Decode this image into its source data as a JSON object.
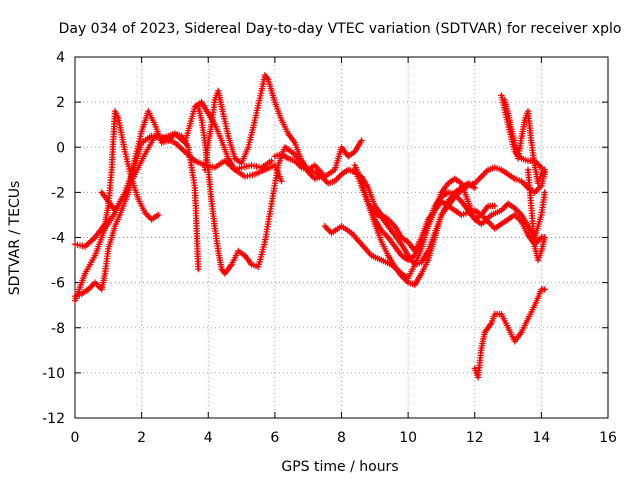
{
  "chart_data": {
    "type": "scatter",
    "title": "Day 034 of 2023, Sidereal Day-to-day VTEC variation (SDTVAR) for receiver xplo",
    "xlabel": "GPS time / hours",
    "ylabel": "SDTVAR / TECUs",
    "xlim": [
      0,
      16
    ],
    "ylim": [
      -12,
      4
    ],
    "xticks": [
      0,
      2,
      4,
      6,
      8,
      10,
      12,
      14,
      16
    ],
    "yticks": [
      -12,
      -10,
      -8,
      -6,
      -4,
      -2,
      0,
      2,
      4
    ],
    "grid": true,
    "marker": "plus",
    "color": "#ff0000",
    "series": [
      {
        "name": "s1",
        "x": [
          0.0,
          0.3,
          0.6,
          0.9,
          1.2,
          1.5,
          1.8,
          2.1,
          2.4,
          2.7,
          3.0,
          3.3,
          3.6,
          3.9,
          4.2,
          4.5,
          4.8,
          5.1,
          5.4,
          5.7,
          6.0,
          6.2
        ],
        "y": [
          -6.8,
          -5.6,
          -4.8,
          -3.6,
          -2.9,
          -2.1,
          -1.2,
          -0.3,
          0.5,
          0.4,
          0.2,
          -0.2,
          -0.6,
          -0.8,
          -0.9,
          -0.6,
          -1.0,
          -1.3,
          -1.2,
          -1.0,
          -0.8,
          -1.5
        ]
      },
      {
        "name": "s2",
        "x": [
          0.0,
          0.3,
          0.6,
          0.9,
          1.0,
          1.1,
          1.2,
          1.3,
          1.5,
          1.7,
          1.9,
          2.1,
          2.3,
          2.5
        ],
        "y": [
          -4.3,
          -4.4,
          -4.0,
          -3.4,
          -2.6,
          -1.0,
          1.6,
          1.3,
          -0.2,
          -1.4,
          -2.3,
          -2.9,
          -3.2,
          -3.0
        ]
      },
      {
        "name": "s3",
        "x": [
          0.0,
          0.2,
          0.4,
          0.6,
          0.8,
          0.9,
          1.0,
          1.2,
          1.4,
          1.6,
          1.8,
          2.0,
          2.2,
          2.4,
          2.6,
          2.8,
          3.0,
          3.2,
          3.4,
          3.6,
          3.7
        ],
        "y": [
          -6.6,
          -6.5,
          -6.3,
          -6.0,
          -6.3,
          -5.6,
          -4.5,
          -3.5,
          -2.8,
          -2.0,
          -0.5,
          0.7,
          1.6,
          1.0,
          0.2,
          0.3,
          0.6,
          0.5,
          0.0,
          -1.8,
          -5.4
        ]
      },
      {
        "name": "s4",
        "x": [
          0.8,
          1.0,
          1.2,
          1.5,
          1.8,
          2.0,
          2.3,
          2.6,
          3.0,
          3.3,
          3.6,
          3.8,
          4.0,
          4.2,
          4.4,
          4.6,
          4.8,
          5.0,
          5.3,
          5.6,
          5.9
        ],
        "y": [
          -2.0,
          -2.4,
          -2.8,
          -2.0,
          -0.8,
          0.2,
          0.5,
          0.4,
          0.6,
          0.2,
          1.8,
          2.0,
          1.5,
          1.0,
          0.3,
          -0.5,
          -1.0,
          -0.9,
          -0.8,
          -0.9,
          -0.6
        ]
      },
      {
        "name": "s5",
        "x": [
          3.7,
          3.8,
          3.9,
          4.0,
          4.1,
          4.2,
          4.3,
          4.4,
          4.5,
          4.7,
          4.9,
          5.1,
          5.3,
          5.5,
          5.7,
          5.9,
          6.1,
          6.3,
          6.5,
          6.8,
          7.0,
          7.2,
          7.4
        ],
        "y": [
          1.8,
          1.2,
          0.2,
          -1.0,
          -2.4,
          -3.6,
          -4.6,
          -5.4,
          -5.6,
          -5.2,
          -4.6,
          -4.8,
          -5.2,
          -5.3,
          -4.2,
          -2.5,
          -0.8,
          0.0,
          -0.2,
          -0.6,
          -1.1,
          -1.4,
          -1.3
        ]
      },
      {
        "name": "s6",
        "x": [
          3.9,
          4.0,
          4.1,
          4.2,
          4.3,
          4.4,
          4.6,
          4.8,
          5.0,
          5.2,
          5.4,
          5.6,
          5.7,
          5.8,
          6.0,
          6.2,
          6.4,
          6.6,
          6.8,
          7.0,
          7.2,
          7.5,
          7.8,
          8.0,
          8.2,
          8.4,
          8.6
        ],
        "y": [
          -1.0,
          0.2,
          1.0,
          2.1,
          2.5,
          1.8,
          0.5,
          -0.5,
          -0.7,
          0.0,
          1.2,
          2.5,
          3.2,
          3.0,
          2.0,
          1.2,
          0.6,
          0.2,
          -0.6,
          -1.0,
          -0.8,
          -1.3,
          -1.0,
          0.0,
          -0.4,
          -0.2,
          0.3
        ]
      },
      {
        "name": "s7",
        "x": [
          6.0,
          6.2,
          6.4,
          6.6,
          6.8,
          7.0,
          7.2,
          7.4,
          7.6,
          7.8,
          8.0,
          8.2,
          8.4,
          8.6,
          8.8,
          9.0,
          9.2,
          9.4,
          9.6,
          9.8,
          10.0,
          10.2,
          10.4,
          10.6,
          10.8,
          11.0,
          11.2,
          11.4,
          11.6,
          11.8,
          12.0,
          12.2,
          12.4,
          12.6,
          12.8,
          13.0,
          13.2,
          13.4,
          13.6,
          13.8,
          14.0,
          14.1
        ],
        "y": [
          -0.4,
          -0.3,
          -0.5,
          -0.6,
          -0.9,
          -1.0,
          -1.1,
          -1.3,
          -1.6,
          -1.5,
          -1.2,
          -1.0,
          -1.1,
          -1.3,
          -1.8,
          -2.6,
          -3.0,
          -3.2,
          -3.5,
          -4.0,
          -4.2,
          -4.6,
          -4.0,
          -3.2,
          -2.8,
          -2.4,
          -2.6,
          -2.2,
          -1.9,
          -1.7,
          -1.6,
          -1.3,
          -1.0,
          -0.9,
          -1.0,
          -1.2,
          -1.4,
          -1.5,
          -1.8,
          -2.0,
          -1.7,
          -1.1
        ]
      },
      {
        "name": "s8",
        "x": [
          7.5,
          7.7,
          8.0,
          8.3,
          8.6,
          8.9,
          9.2,
          9.5,
          9.8,
          10.0,
          10.2,
          10.4,
          10.6,
          10.8,
          11.0,
          11.2,
          11.4,
          11.6,
          11.8,
          12.0,
          12.2,
          12.5,
          12.8,
          13.0,
          13.2,
          13.4,
          13.6,
          13.8,
          14.0,
          14.1
        ],
        "y": [
          -3.5,
          -3.8,
          -3.5,
          -3.8,
          -4.3,
          -4.8,
          -5.0,
          -5.2,
          -5.6,
          -5.8,
          -5.2,
          -4.5,
          -3.5,
          -2.6,
          -2.2,
          -2.0,
          -2.1,
          -2.4,
          -2.8,
          -3.2,
          -3.4,
          -3.0,
          -2.8,
          -2.5,
          -2.7,
          -3.0,
          -3.5,
          -4.0,
          -3.0,
          -2.0
        ]
      },
      {
        "name": "s9",
        "x": [
          8.4,
          8.6,
          8.8,
          9.0,
          9.2,
          9.4,
          9.6,
          9.8,
          10.0,
          10.2,
          10.4,
          10.6,
          10.8,
          11.0,
          11.2,
          11.4,
          11.6,
          11.8,
          12.0,
          12.2,
          12.4,
          12.6,
          12.8,
          13.0,
          13.2,
          13.4,
          13.6,
          13.8,
          14.0,
          14.1
        ],
        "y": [
          -1.0,
          -1.7,
          -2.5,
          -3.4,
          -4.2,
          -4.8,
          -5.3,
          -5.7,
          -6.0,
          -6.1,
          -5.6,
          -5.0,
          -4.0,
          -3.0,
          -2.6,
          -2.8,
          -3.0,
          -2.9,
          -2.8,
          -3.0,
          -3.3,
          -3.6,
          -3.4,
          -3.2,
          -3.0,
          -3.3,
          -3.9,
          -4.3,
          -4.0,
          -4.0
        ]
      },
      {
        "name": "s10",
        "x": [
          8.4,
          8.6,
          8.8,
          9.0,
          9.2,
          9.4,
          9.6,
          9.8,
          10.0,
          10.2,
          10.4,
          10.6,
          10.8,
          11.0,
          11.2,
          11.4,
          11.6,
          11.8,
          12.0,
          12.2,
          12.4,
          12.6
        ],
        "y": [
          -0.8,
          -1.5,
          -2.4,
          -3.2,
          -3.7,
          -4.0,
          -4.4,
          -4.8,
          -5.0,
          -4.8,
          -4.2,
          -3.5,
          -2.8,
          -2.0,
          -1.6,
          -1.4,
          -1.6,
          -2.4,
          -3.2,
          -3.0,
          -2.6,
          -2.6
        ]
      },
      {
        "name": "s11",
        "x": [
          8.6,
          8.8,
          9.0,
          9.2,
          9.4,
          9.6,
          9.8,
          10.0,
          10.2,
          10.4,
          10.6,
          10.8,
          11.0,
          11.2,
          11.4,
          11.6,
          11.8,
          12.0
        ],
        "y": [
          -1.7,
          -2.5,
          -2.9,
          -3.1,
          -3.5,
          -3.9,
          -4.3,
          -4.8,
          -5.2,
          -5.1,
          -4.6,
          -3.8,
          -3.0,
          -2.4,
          -2.0,
          -1.8,
          -1.6,
          -1.8
        ]
      },
      {
        "name": "s12",
        "x": [
          12.9,
          13.0,
          13.1,
          13.2,
          13.3,
          13.4,
          13.5,
          13.6,
          13.7,
          13.8,
          13.9,
          14.0,
          14.1
        ],
        "y": [
          2.1,
          1.5,
          0.8,
          0.2,
          -0.5,
          0.4,
          1.2,
          1.6,
          0.2,
          -0.8,
          -1.6,
          -1.2,
          -1.0
        ]
      },
      {
        "name": "s13",
        "x": [
          12.8,
          13.0,
          13.2,
          13.4,
          13.6,
          13.8,
          14.0,
          14.1
        ],
        "y": [
          2.3,
          1.0,
          -0.2,
          -0.5,
          -0.6,
          -0.6,
          -0.9,
          -1.2
        ]
      },
      {
        "name": "s14",
        "x": [
          13.6,
          13.8,
          13.9,
          14.0,
          14.1
        ],
        "y": [
          -1.0,
          -4.4,
          -5.0,
          -4.6,
          -4.0
        ]
      },
      {
        "name": "s15",
        "x": [
          12.0,
          12.1,
          12.2,
          12.3,
          12.4,
          12.5,
          12.6,
          12.8,
          13.0,
          13.2,
          13.4,
          13.6,
          13.8,
          14.0,
          14.1
        ],
        "y": [
          -9.8,
          -10.2,
          -8.9,
          -8.2,
          -8.0,
          -7.8,
          -7.4,
          -7.4,
          -8.0,
          -8.6,
          -8.2,
          -7.6,
          -7.0,
          -6.3,
          -6.3
        ]
      }
    ]
  }
}
